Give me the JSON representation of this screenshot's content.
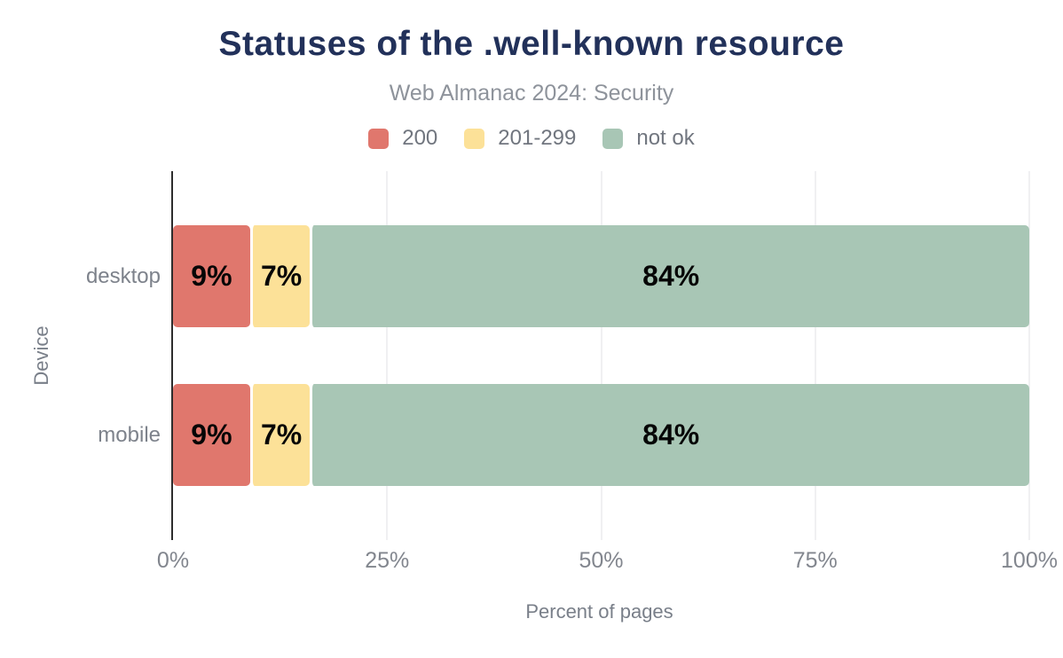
{
  "chart_data": {
    "type": "bar",
    "orientation": "horizontal",
    "stacked": true,
    "title": "Statuses of the .well-known resource",
    "subtitle": "Web Almanac 2024: Security",
    "xlabel": "Percent of pages",
    "ylabel": "Device",
    "xlim": [
      0,
      100
    ],
    "grid": "vertical",
    "legend_position": "top",
    "x_ticks": [
      {
        "label": "0%",
        "value": 0
      },
      {
        "label": "25%",
        "value": 25
      },
      {
        "label": "50%",
        "value": 50
      },
      {
        "label": "75%",
        "value": 75
      },
      {
        "label": "100%",
        "value": 100
      }
    ],
    "categories": [
      "desktop",
      "mobile"
    ],
    "series": [
      {
        "name": "200",
        "color": "#e0776d",
        "values": [
          9,
          9
        ],
        "labels": [
          "9%",
          "9%"
        ]
      },
      {
        "name": "201-299",
        "color": "#fce198",
        "values": [
          7,
          7
        ],
        "labels": [
          "7%",
          "7%"
        ]
      },
      {
        "name": "not ok",
        "color": "#a8c6b5",
        "values": [
          84,
          84
        ],
        "labels": [
          "84%",
          "84%"
        ]
      }
    ],
    "colors": {
      "title": "#22315a",
      "axis_line": "#2d2d2d",
      "gridline": "#f0f0f2",
      "bar_value_text": "#060606"
    }
  }
}
